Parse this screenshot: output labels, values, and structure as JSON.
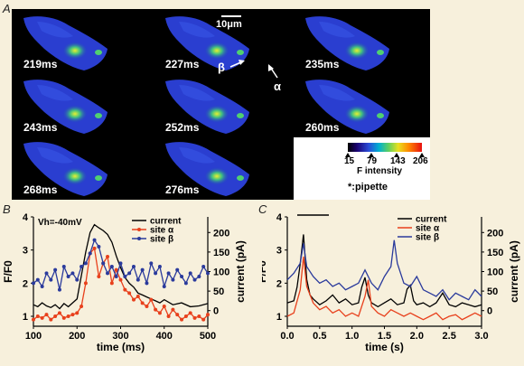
{
  "panel_letters": [
    "A",
    "B",
    "C"
  ],
  "panel_a": {
    "frames": [
      "219ms",
      "227ms",
      "235ms",
      "243ms",
      "252ms",
      "260ms",
      "268ms",
      "276ms"
    ],
    "scale_bar": "10μm",
    "pipette_symbol": "*",
    "site_beta_label": "β",
    "site_alpha_label": "α",
    "colorbar": {
      "ticks": [
        "15",
        "79",
        "143",
        "206"
      ],
      "title": "F intensity"
    },
    "pipette_note": "*:pipette"
  },
  "chart_data": [
    {
      "type": "line",
      "panel": "B",
      "annotation": "Vh=-40mV",
      "xlabel": "time (ms)",
      "ylabel_left": "F/F0",
      "ylabel_right": "current (pA)",
      "xlim": [
        100,
        500
      ],
      "ylim_left": [
        0.7,
        4
      ],
      "ylim_right": [
        -40,
        240
      ],
      "xticks": [
        "100",
        "200",
        "300",
        "400",
        "500"
      ],
      "yticks_left": [
        "1",
        "2",
        "3",
        "4"
      ],
      "yticks_right": [
        "0",
        "50",
        "100",
        "150",
        "200"
      ],
      "legend": [
        "current",
        "site α",
        "site β"
      ],
      "series": [
        {
          "name": "current",
          "axis": "right",
          "color": "#000000",
          "x": [
            100,
            110,
            120,
            130,
            140,
            150,
            160,
            170,
            180,
            190,
            200,
            210,
            220,
            230,
            240,
            250,
            260,
            270,
            280,
            290,
            300,
            310,
            320,
            330,
            340,
            350,
            360,
            370,
            380,
            390,
            400,
            420,
            440,
            460,
            480,
            500
          ],
          "y": [
            15,
            10,
            20,
            12,
            8,
            15,
            5,
            18,
            10,
            20,
            30,
            90,
            150,
            200,
            220,
            212,
            205,
            195,
            175,
            140,
            110,
            85,
            70,
            60,
            45,
            40,
            35,
            30,
            25,
            20,
            28,
            15,
            20,
            10,
            12,
            18
          ]
        },
        {
          "name": "site α",
          "axis": "left",
          "color": "#e8401c",
          "x": [
            100,
            110,
            120,
            130,
            140,
            150,
            160,
            170,
            180,
            190,
            200,
            210,
            220,
            230,
            240,
            250,
            260,
            270,
            280,
            290,
            300,
            310,
            320,
            330,
            340,
            350,
            360,
            370,
            380,
            390,
            400,
            410,
            420,
            430,
            440,
            450,
            460,
            470,
            480,
            490,
            500
          ],
          "y": [
            0.9,
            1.0,
            0.95,
            1.05,
            0.9,
            1.0,
            1.1,
            0.95,
            1.0,
            1.05,
            1.1,
            1.3,
            2.0,
            2.9,
            3.05,
            2.2,
            2.6,
            2.8,
            2.0,
            2.4,
            2.1,
            1.8,
            1.7,
            1.5,
            1.6,
            1.4,
            1.3,
            1.5,
            1.2,
            1.1,
            1.3,
            1.0,
            1.2,
            1.05,
            0.9,
            1.0,
            1.1,
            0.95,
            1.0,
            0.9,
            1.05
          ]
        },
        {
          "name": "site β",
          "axis": "left",
          "color": "#2a3a9c",
          "x": [
            100,
            110,
            120,
            130,
            140,
            150,
            160,
            170,
            180,
            190,
            200,
            210,
            220,
            230,
            240,
            250,
            260,
            270,
            280,
            290,
            300,
            310,
            320,
            330,
            340,
            350,
            360,
            370,
            380,
            390,
            400,
            410,
            420,
            430,
            440,
            450,
            460,
            470,
            480,
            490,
            500
          ],
          "y": [
            2.0,
            2.1,
            1.9,
            2.3,
            2.1,
            2.4,
            1.8,
            2.5,
            2.2,
            2.3,
            2.1,
            2.5,
            2.6,
            2.9,
            3.3,
            3.1,
            2.6,
            2.3,
            2.5,
            2.2,
            2.6,
            2.2,
            2.3,
            2.5,
            2.1,
            2.4,
            2.0,
            2.6,
            2.3,
            2.5,
            1.9,
            2.3,
            2.1,
            2.4,
            2.2,
            2.0,
            2.3,
            2.1,
            2.2,
            2.5,
            2.3
          ]
        }
      ]
    },
    {
      "type": "line",
      "panel": "C",
      "xlabel": "time (s)",
      "ylabel_left": "F/F0",
      "ylabel_right": "current (pA)",
      "xlim": [
        0,
        3.0
      ],
      "ylim_left": [
        0.7,
        4
      ],
      "ylim_right": [
        -40,
        240
      ],
      "xticks": [
        "0.0",
        "0.5",
        "1.0",
        "1.5",
        "2.0",
        "2.5",
        "3.0"
      ],
      "yticks_left": [
        "1",
        "2",
        "3",
        "4"
      ],
      "yticks_right": [
        "0",
        "50",
        "100",
        "150",
        "200"
      ],
      "legend": [
        "current",
        "site α",
        "site β"
      ],
      "series": [
        {
          "name": "current",
          "axis": "right",
          "color": "#000000",
          "x": [
            0,
            0.1,
            0.15,
            0.2,
            0.25,
            0.3,
            0.35,
            0.4,
            0.5,
            0.6,
            0.7,
            0.8,
            0.9,
            1.0,
            1.1,
            1.15,
            1.2,
            1.25,
            1.3,
            1.4,
            1.5,
            1.6,
            1.7,
            1.8,
            1.85,
            1.9,
            1.95,
            2.0,
            2.1,
            2.2,
            2.3,
            2.4,
            2.5,
            2.6,
            2.7,
            2.8,
            2.9,
            3.0
          ],
          "y": [
            20,
            25,
            60,
            120,
            195,
            80,
            40,
            30,
            15,
            25,
            40,
            20,
            30,
            15,
            20,
            60,
            85,
            40,
            20,
            10,
            20,
            30,
            15,
            20,
            55,
            65,
            25,
            15,
            20,
            10,
            20,
            45,
            15,
            10,
            20,
            15,
            10,
            15
          ]
        },
        {
          "name": "site α",
          "axis": "left",
          "color": "#e8401c",
          "x": [
            0,
            0.1,
            0.2,
            0.25,
            0.3,
            0.4,
            0.5,
            0.6,
            0.7,
            0.8,
            0.9,
            1.0,
            1.1,
            1.2,
            1.25,
            1.3,
            1.4,
            1.5,
            1.6,
            1.7,
            1.8,
            1.9,
            2.0,
            2.1,
            2.2,
            2.3,
            2.4,
            2.5,
            2.6,
            2.7,
            2.8,
            2.9,
            3.0
          ],
          "y": [
            1.0,
            1.1,
            1.8,
            2.8,
            1.9,
            1.4,
            1.2,
            1.3,
            1.1,
            1.2,
            1.0,
            1.1,
            1.0,
            1.6,
            2.1,
            1.3,
            1.1,
            1.0,
            1.2,
            1.1,
            1.0,
            1.1,
            1.0,
            0.9,
            1.0,
            1.1,
            0.9,
            1.0,
            1.05,
            0.9,
            1.0,
            1.1,
            1.0
          ]
        },
        {
          "name": "site β",
          "axis": "left",
          "color": "#2a3a9c",
          "x": [
            0,
            0.1,
            0.2,
            0.25,
            0.3,
            0.4,
            0.5,
            0.6,
            0.7,
            0.8,
            0.9,
            1.0,
            1.1,
            1.2,
            1.3,
            1.4,
            1.5,
            1.6,
            1.65,
            1.7,
            1.8,
            1.9,
            2.0,
            2.1,
            2.2,
            2.3,
            2.4,
            2.5,
            2.6,
            2.7,
            2.8,
            2.9,
            3.0
          ],
          "y": [
            2.1,
            2.3,
            2.6,
            3.2,
            2.5,
            2.2,
            2.0,
            2.1,
            1.9,
            2.0,
            1.8,
            1.9,
            2.0,
            2.4,
            2.0,
            1.8,
            2.2,
            2.5,
            3.3,
            2.6,
            2.0,
            1.9,
            2.2,
            1.8,
            1.7,
            1.6,
            1.8,
            1.5,
            1.7,
            1.6,
            1.5,
            1.8,
            1.6
          ]
        }
      ]
    }
  ]
}
